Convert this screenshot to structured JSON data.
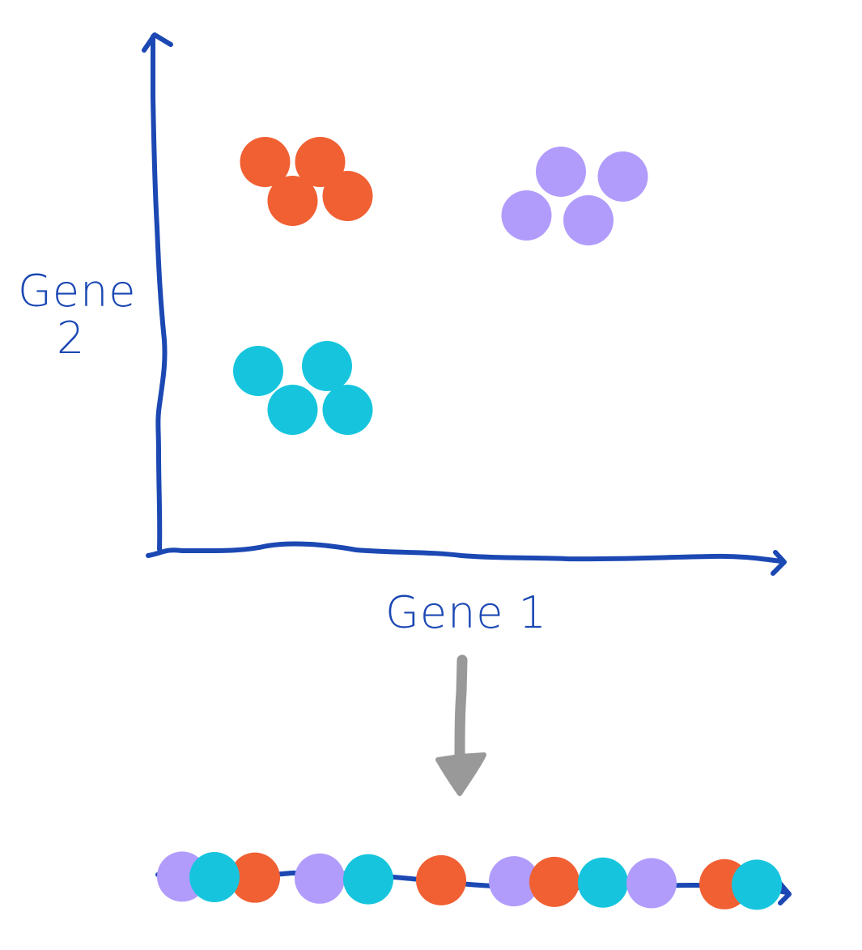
{
  "colors": {
    "axis": "#1b48b3",
    "arrow": "#999999",
    "cluster_orange": "#f06033",
    "cluster_purple": "#b19cfc",
    "cluster_teal": "#16c5dd"
  },
  "labels": {
    "y_axis_line1": "Gene",
    "y_axis_line2": "2",
    "x_axis": "Gene 1"
  },
  "clusters": [
    {
      "name": "orange",
      "color_key": "cluster_orange",
      "points": [
        {
          "gene1": 1.5,
          "gene2": 8.0
        },
        {
          "gene1": 2.3,
          "gene2": 8.0
        },
        {
          "gene1": 1.9,
          "gene2": 7.2
        },
        {
          "gene1": 2.7,
          "gene2": 7.3
        }
      ]
    },
    {
      "name": "purple",
      "color_key": "cluster_purple",
      "points": [
        {
          "gene1": 5.8,
          "gene2": 7.8
        },
        {
          "gene1": 6.7,
          "gene2": 7.7
        },
        {
          "gene1": 5.3,
          "gene2": 6.9
        },
        {
          "gene1": 6.2,
          "gene2": 6.8
        }
      ]
    },
    {
      "name": "teal",
      "color_key": "cluster_teal",
      "points": [
        {
          "gene1": 1.4,
          "gene2": 3.7
        },
        {
          "gene1": 2.4,
          "gene2": 3.8
        },
        {
          "gene1": 1.9,
          "gene2": 2.9
        },
        {
          "gene1": 2.7,
          "gene2": 2.9
        }
      ]
    }
  ],
  "projection": [
    {
      "position": 0.3,
      "color_key": "cluster_purple"
    },
    {
      "position": 1.2,
      "color_key": "cluster_orange"
    },
    {
      "position": 0.7,
      "color_key": "cluster_teal"
    },
    {
      "position": 2.0,
      "color_key": "cluster_purple"
    },
    {
      "position": 2.6,
      "color_key": "cluster_teal"
    },
    {
      "position": 3.5,
      "color_key": "cluster_orange"
    },
    {
      "position": 4.4,
      "color_key": "cluster_purple"
    },
    {
      "position": 4.9,
      "color_key": "cluster_orange"
    },
    {
      "position": 5.5,
      "color_key": "cluster_teal"
    },
    {
      "position": 6.1,
      "color_key": "cluster_purple"
    },
    {
      "position": 7.0,
      "color_key": "cluster_orange"
    },
    {
      "position": 7.4,
      "color_key": "cluster_teal"
    }
  ]
}
